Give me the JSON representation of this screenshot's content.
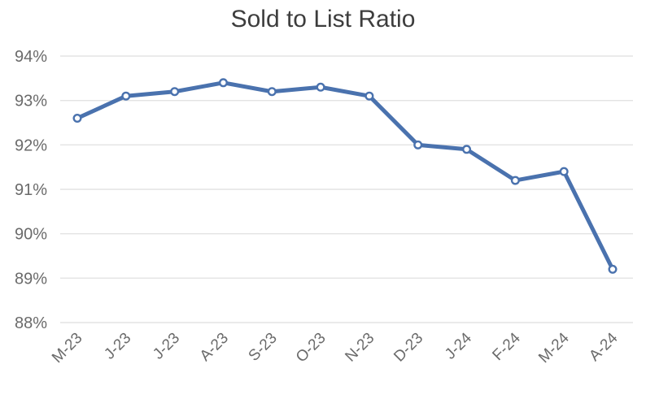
{
  "chart_data": {
    "type": "line",
    "title": "Sold to List Ratio",
    "categories": [
      "M-23",
      "J-23",
      "J-23",
      "A-23",
      "S-23",
      "O-23",
      "N-23",
      "D-23",
      "J-24",
      "F-24",
      "M-24",
      "A-24"
    ],
    "values": [
      92.6,
      93.1,
      93.2,
      93.4,
      93.2,
      93.3,
      93.1,
      92.0,
      91.9,
      91.2,
      91.4,
      89.2
    ],
    "xlabel": "",
    "ylabel": "",
    "ylim": [
      88,
      94
    ],
    "ytick_step": 1,
    "ytick_suffix": "%",
    "ytick_labels": [
      "88%",
      "89%",
      "90%",
      "91%",
      "92%",
      "93%",
      "94%"
    ],
    "grid": "horizontal",
    "legend": "none",
    "marker": "open-circle",
    "colors": {
      "line": "#4a72ae",
      "marker_fill": "#ffffff",
      "grid": "#e3e3e3",
      "axis_text": "#6a6a6a",
      "title_text": "#3d3d3d",
      "background": "#ffffff"
    }
  }
}
